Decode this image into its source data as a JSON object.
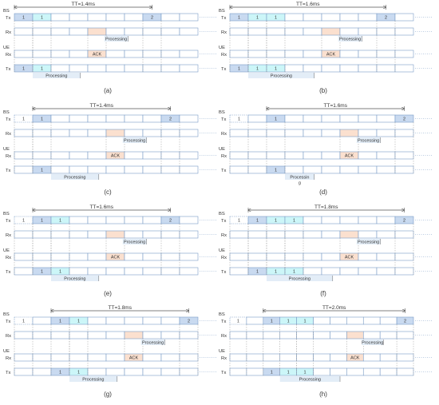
{
  "colors": {
    "slot_border": "#7a9cc6",
    "slot_fill": "#ffffff",
    "num_fill": "#c9daf0",
    "light_num_fill": "#ccf6f8",
    "ack_fill": "#fbe0cf",
    "processing_fill": "#e3edf7",
    "dashed_fill": "#ffffff",
    "text": "#333333",
    "guide_line": "#9a9a9a"
  },
  "labels": {
    "bs": "BS",
    "ue": "UE",
    "tx": "Tx",
    "rx": "Rx",
    "ack": "ACK",
    "processing": "Processing"
  },
  "panels": [
    {
      "caption": "(a)",
      "tt": "TT=1.4ms",
      "bs_tx": [
        [
          "num",
          "1"
        ],
        [
          "light",
          "1"
        ],
        [
          "e",
          ""
        ],
        [
          "e",
          ""
        ],
        [
          "e",
          ""
        ],
        [
          "e",
          ""
        ],
        [
          "e",
          ""
        ],
        [
          "num",
          "2"
        ],
        [
          "e",
          ""
        ],
        [
          "e",
          ""
        ]
      ],
      "bs_rx": [
        [
          "e",
          ""
        ],
        [
          "e",
          ""
        ],
        [
          "e",
          ""
        ],
        [
          "e",
          ""
        ],
        [
          "ack",
          ""
        ],
        [
          "e",
          ""
        ],
        [
          "e",
          ""
        ],
        [
          "e",
          ""
        ],
        [
          "e",
          ""
        ],
        [
          "e",
          ""
        ]
      ],
      "ue_rx": [
        [
          "e",
          ""
        ],
        [
          "e",
          ""
        ],
        [
          "e",
          ""
        ],
        [
          "e",
          ""
        ],
        [
          "ackt",
          "ACK"
        ],
        [
          "e",
          ""
        ],
        [
          "e",
          ""
        ],
        [
          "e",
          ""
        ],
        [
          "e",
          ""
        ],
        [
          "e",
          ""
        ]
      ],
      "ue_tx": [
        [
          "num",
          "1"
        ],
        [
          "light",
          "1"
        ],
        [
          "e",
          ""
        ],
        [
          "e",
          ""
        ],
        [
          "e",
          ""
        ],
        [
          "e",
          ""
        ],
        [
          "e",
          ""
        ],
        [
          "e",
          ""
        ],
        [
          "e",
          ""
        ],
        [
          "e",
          ""
        ]
      ],
      "ue_proc": {
        "start": 1,
        "end": 3.6,
        "text": "Processing"
      },
      "bs_proc": {
        "start": 4.9,
        "end": 6.2,
        "text": "Processing"
      },
      "tt_span": [
        0,
        7.5
      ]
    },
    {
      "caption": "(b)",
      "tt": "TT=1.6ms",
      "bs_tx": [
        [
          "num",
          "1"
        ],
        [
          "light",
          "1"
        ],
        [
          "light",
          "1"
        ],
        [
          "e",
          ""
        ],
        [
          "e",
          ""
        ],
        [
          "e",
          ""
        ],
        [
          "e",
          ""
        ],
        [
          "e",
          ""
        ],
        [
          "num",
          "2"
        ],
        [
          "e",
          ""
        ]
      ],
      "bs_rx": [
        [
          "e",
          ""
        ],
        [
          "e",
          ""
        ],
        [
          "e",
          ""
        ],
        [
          "e",
          ""
        ],
        [
          "e",
          ""
        ],
        [
          "ack",
          ""
        ],
        [
          "e",
          ""
        ],
        [
          "e",
          ""
        ],
        [
          "e",
          ""
        ],
        [
          "e",
          ""
        ]
      ],
      "ue_rx": [
        [
          "e",
          ""
        ],
        [
          "e",
          ""
        ],
        [
          "e",
          ""
        ],
        [
          "e",
          ""
        ],
        [
          "e",
          ""
        ],
        [
          "ackt",
          "ACK"
        ],
        [
          "e",
          ""
        ],
        [
          "e",
          ""
        ],
        [
          "e",
          ""
        ],
        [
          "e",
          ""
        ]
      ],
      "ue_tx": [
        [
          "num",
          "1"
        ],
        [
          "light",
          "1"
        ],
        [
          "light",
          "1"
        ],
        [
          "e",
          ""
        ],
        [
          "e",
          ""
        ],
        [
          "e",
          ""
        ],
        [
          "e",
          ""
        ],
        [
          "e",
          ""
        ],
        [
          "e",
          ""
        ],
        [
          "e",
          ""
        ]
      ],
      "ue_proc": {
        "start": 1,
        "end": 4.6,
        "text": "Processing"
      },
      "bs_proc": {
        "start": 5.9,
        "end": 7.2,
        "text": "Processing"
      },
      "tt_span": [
        0,
        8.5
      ]
    },
    {
      "caption": "(c)",
      "tt": "TT=1.4ms",
      "bs_tx": [
        [
          "dash",
          "1"
        ],
        [
          "num",
          "1"
        ],
        [
          "e",
          ""
        ],
        [
          "e",
          ""
        ],
        [
          "e",
          ""
        ],
        [
          "e",
          ""
        ],
        [
          "e",
          ""
        ],
        [
          "e",
          ""
        ],
        [
          "num",
          "2"
        ],
        [
          "e",
          ""
        ]
      ],
      "bs_rx": [
        [
          "e",
          ""
        ],
        [
          "e",
          ""
        ],
        [
          "e",
          ""
        ],
        [
          "e",
          ""
        ],
        [
          "e",
          ""
        ],
        [
          "ack",
          ""
        ],
        [
          "e",
          ""
        ],
        [
          "e",
          ""
        ],
        [
          "e",
          ""
        ],
        [
          "e",
          ""
        ]
      ],
      "ue_rx": [
        [
          "e",
          ""
        ],
        [
          "e",
          ""
        ],
        [
          "e",
          ""
        ],
        [
          "e",
          ""
        ],
        [
          "e",
          ""
        ],
        [
          "ackt",
          "ACK"
        ],
        [
          "e",
          ""
        ],
        [
          "e",
          ""
        ],
        [
          "e",
          ""
        ],
        [
          "e",
          ""
        ]
      ],
      "ue_tx": [
        [
          "e",
          ""
        ],
        [
          "num",
          "1"
        ],
        [
          "e",
          ""
        ],
        [
          "e",
          ""
        ],
        [
          "e",
          ""
        ],
        [
          "e",
          ""
        ],
        [
          "e",
          ""
        ],
        [
          "e",
          ""
        ],
        [
          "e",
          ""
        ],
        [
          "e",
          ""
        ]
      ],
      "ue_proc": {
        "start": 2,
        "end": 4.6,
        "text": "Processing"
      },
      "bs_proc": {
        "start": 5.9,
        "end": 7.2,
        "text": "Processing"
      },
      "tt_span": [
        1,
        8.5
      ]
    },
    {
      "caption": "(d)",
      "tt": "TT=1.6ms",
      "bs_tx": [
        [
          "dash",
          "1"
        ],
        [
          "e",
          ""
        ],
        [
          "num",
          "1"
        ],
        [
          "e",
          ""
        ],
        [
          "e",
          ""
        ],
        [
          "e",
          ""
        ],
        [
          "e",
          ""
        ],
        [
          "e",
          ""
        ],
        [
          "e",
          ""
        ],
        [
          "num",
          "2"
        ]
      ],
      "bs_rx": [
        [
          "e",
          ""
        ],
        [
          "e",
          ""
        ],
        [
          "e",
          ""
        ],
        [
          "e",
          ""
        ],
        [
          "e",
          ""
        ],
        [
          "e",
          ""
        ],
        [
          "ack",
          ""
        ],
        [
          "e",
          ""
        ],
        [
          "e",
          ""
        ],
        [
          "e",
          ""
        ]
      ],
      "ue_rx": [
        [
          "e",
          ""
        ],
        [
          "e",
          ""
        ],
        [
          "e",
          ""
        ],
        [
          "e",
          ""
        ],
        [
          "e",
          ""
        ],
        [
          "e",
          ""
        ],
        [
          "ackt",
          "ACK"
        ],
        [
          "e",
          ""
        ],
        [
          "e",
          ""
        ],
        [
          "e",
          ""
        ]
      ],
      "ue_tx": [
        [
          "e",
          ""
        ],
        [
          "e",
          ""
        ],
        [
          "num",
          "1"
        ],
        [
          "e",
          ""
        ],
        [
          "e",
          ""
        ],
        [
          "e",
          ""
        ],
        [
          "e",
          ""
        ],
        [
          "e",
          ""
        ],
        [
          "e",
          ""
        ],
        [
          "e",
          ""
        ]
      ],
      "ue_proc": {
        "start": 3,
        "end": 4.6,
        "text": "Processin",
        "text2": "g"
      },
      "bs_proc": {
        "start": 6.9,
        "end": 8.2,
        "text": "Processing"
      },
      "tt_span": [
        2,
        9.5
      ]
    },
    {
      "caption": "(e)",
      "tt": "TT=1.6ms",
      "bs_tx": [
        [
          "dash",
          "1"
        ],
        [
          "num",
          "1"
        ],
        [
          "light",
          "1"
        ],
        [
          "e",
          ""
        ],
        [
          "e",
          ""
        ],
        [
          "e",
          ""
        ],
        [
          "e",
          ""
        ],
        [
          "e",
          ""
        ],
        [
          "num",
          "2"
        ],
        [
          "e",
          ""
        ]
      ],
      "bs_rx": [
        [
          "e",
          ""
        ],
        [
          "e",
          ""
        ],
        [
          "e",
          ""
        ],
        [
          "e",
          ""
        ],
        [
          "e",
          ""
        ],
        [
          "ack",
          ""
        ],
        [
          "e",
          ""
        ],
        [
          "e",
          ""
        ],
        [
          "e",
          ""
        ],
        [
          "e",
          ""
        ]
      ],
      "ue_rx": [
        [
          "e",
          ""
        ],
        [
          "e",
          ""
        ],
        [
          "e",
          ""
        ],
        [
          "e",
          ""
        ],
        [
          "e",
          ""
        ],
        [
          "ackt",
          "ACK"
        ],
        [
          "e",
          ""
        ],
        [
          "e",
          ""
        ],
        [
          "e",
          ""
        ],
        [
          "e",
          ""
        ]
      ],
      "ue_tx": [
        [
          "e",
          ""
        ],
        [
          "num",
          "1"
        ],
        [
          "light",
          "1"
        ],
        [
          "e",
          ""
        ],
        [
          "e",
          ""
        ],
        [
          "e",
          ""
        ],
        [
          "e",
          ""
        ],
        [
          "e",
          ""
        ],
        [
          "e",
          ""
        ],
        [
          "e",
          ""
        ]
      ],
      "ue_proc": {
        "start": 2,
        "end": 4.6,
        "text": "Processing"
      },
      "bs_proc": {
        "start": 5.9,
        "end": 7.2,
        "text": "Processing"
      },
      "tt_span": [
        1,
        8.5
      ]
    },
    {
      "caption": "(f)",
      "tt": "TT=1.8ms",
      "bs_tx": [
        [
          "dash",
          "1"
        ],
        [
          "num",
          "1"
        ],
        [
          "light",
          "1"
        ],
        [
          "light",
          "1"
        ],
        [
          "e",
          ""
        ],
        [
          "e",
          ""
        ],
        [
          "e",
          ""
        ],
        [
          "e",
          ""
        ],
        [
          "e",
          ""
        ],
        [
          "num",
          "2"
        ]
      ],
      "bs_rx": [
        [
          "e",
          ""
        ],
        [
          "e",
          ""
        ],
        [
          "e",
          ""
        ],
        [
          "e",
          ""
        ],
        [
          "e",
          ""
        ],
        [
          "e",
          ""
        ],
        [
          "ack",
          ""
        ],
        [
          "e",
          ""
        ],
        [
          "e",
          ""
        ],
        [
          "e",
          ""
        ]
      ],
      "ue_rx": [
        [
          "e",
          ""
        ],
        [
          "e",
          ""
        ],
        [
          "e",
          ""
        ],
        [
          "e",
          ""
        ],
        [
          "e",
          ""
        ],
        [
          "e",
          ""
        ],
        [
          "ackt",
          "ACK"
        ],
        [
          "e",
          ""
        ],
        [
          "e",
          ""
        ],
        [
          "e",
          ""
        ]
      ],
      "ue_tx": [
        [
          "e",
          ""
        ],
        [
          "num",
          "1"
        ],
        [
          "light",
          "1"
        ],
        [
          "light",
          "1"
        ],
        [
          "e",
          ""
        ],
        [
          "e",
          ""
        ],
        [
          "e",
          ""
        ],
        [
          "e",
          ""
        ],
        [
          "e",
          ""
        ],
        [
          "e",
          ""
        ]
      ],
      "ue_proc": {
        "start": 2,
        "end": 5.6,
        "text": "Processing"
      },
      "bs_proc": {
        "start": 6.9,
        "end": 8.2,
        "text": "Processing"
      },
      "tt_span": [
        1,
        9.5
      ]
    },
    {
      "caption": "(g)",
      "tt": "TT=1.8ms",
      "bs_tx": [
        [
          "dash",
          "1"
        ],
        [
          "e",
          ""
        ],
        [
          "num",
          "1"
        ],
        [
          "light",
          "1"
        ],
        [
          "e",
          ""
        ],
        [
          "e",
          ""
        ],
        [
          "e",
          ""
        ],
        [
          "e",
          ""
        ],
        [
          "e",
          ""
        ],
        [
          "num",
          "2"
        ]
      ],
      "bs_rx": [
        [
          "e",
          ""
        ],
        [
          "e",
          ""
        ],
        [
          "e",
          ""
        ],
        [
          "e",
          ""
        ],
        [
          "e",
          ""
        ],
        [
          "e",
          ""
        ],
        [
          "ack",
          ""
        ],
        [
          "e",
          ""
        ],
        [
          "e",
          ""
        ],
        [
          "e",
          ""
        ]
      ],
      "ue_rx": [
        [
          "e",
          ""
        ],
        [
          "e",
          ""
        ],
        [
          "e",
          ""
        ],
        [
          "e",
          ""
        ],
        [
          "e",
          ""
        ],
        [
          "e",
          ""
        ],
        [
          "ackt",
          "ACK"
        ],
        [
          "e",
          ""
        ],
        [
          "e",
          ""
        ],
        [
          "e",
          ""
        ]
      ],
      "ue_tx": [
        [
          "e",
          ""
        ],
        [
          "e",
          ""
        ],
        [
          "num",
          "1"
        ],
        [
          "light",
          "1"
        ],
        [
          "e",
          ""
        ],
        [
          "e",
          ""
        ],
        [
          "e",
          ""
        ],
        [
          "e",
          ""
        ],
        [
          "e",
          ""
        ],
        [
          "e",
          ""
        ]
      ],
      "ue_proc": {
        "start": 3,
        "end": 5.6,
        "text": "Processing"
      },
      "bs_proc": {
        "start": 6.9,
        "end": 8.2,
        "text": "Processing"
      },
      "tt_span": [
        2,
        9.5
      ]
    },
    {
      "caption": "(h)",
      "tt": "TT=2.0ms",
      "bs_tx": [
        [
          "dash",
          "1"
        ],
        [
          "e",
          ""
        ],
        [
          "num",
          "1"
        ],
        [
          "light",
          "1"
        ],
        [
          "light",
          "1"
        ],
        [
          "e",
          ""
        ],
        [
          "e",
          ""
        ],
        [
          "e",
          ""
        ],
        [
          "e",
          ""
        ],
        [
          "e",
          ""
        ],
        [
          "num",
          "2"
        ]
      ],
      "bs_rx": [
        [
          "e",
          ""
        ],
        [
          "e",
          ""
        ],
        [
          "e",
          ""
        ],
        [
          "e",
          ""
        ],
        [
          "e",
          ""
        ],
        [
          "e",
          ""
        ],
        [
          "e",
          ""
        ],
        [
          "ack",
          ""
        ],
        [
          "e",
          ""
        ],
        [
          "e",
          ""
        ],
        [
          "e",
          ""
        ]
      ],
      "ue_rx": [
        [
          "e",
          ""
        ],
        [
          "e",
          ""
        ],
        [
          "e",
          ""
        ],
        [
          "e",
          ""
        ],
        [
          "e",
          ""
        ],
        [
          "e",
          ""
        ],
        [
          "e",
          ""
        ],
        [
          "ackt",
          "ACK"
        ],
        [
          "e",
          ""
        ],
        [
          "e",
          ""
        ],
        [
          "e",
          ""
        ]
      ],
      "ue_tx": [
        [
          "e",
          ""
        ],
        [
          "e",
          ""
        ],
        [
          "num",
          "1"
        ],
        [
          "light",
          "1"
        ],
        [
          "light",
          "1"
        ],
        [
          "e",
          ""
        ],
        [
          "e",
          ""
        ],
        [
          "e",
          ""
        ],
        [
          "e",
          ""
        ],
        [
          "e",
          ""
        ],
        [
          "e",
          ""
        ]
      ],
      "ue_proc": {
        "start": 3,
        "end": 6.6,
        "text": "Processing"
      },
      "bs_proc": {
        "start": 7.9,
        "end": 9.2,
        "text": "Processing"
      },
      "tt_span": [
        2,
        10.5
      ]
    }
  ]
}
